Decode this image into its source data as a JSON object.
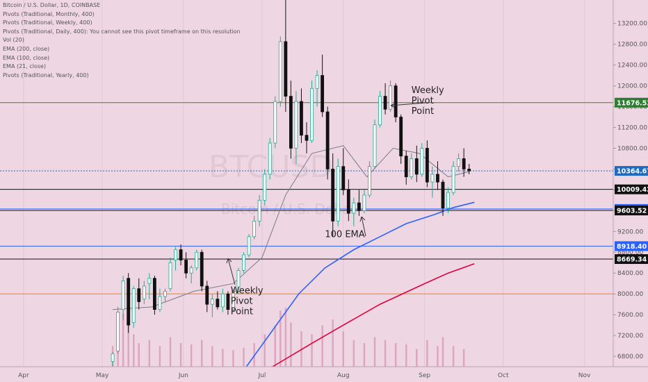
{
  "legend": [
    "Bitcoin / U.S. Dollar, 1D, COINBASE",
    "Pivots (Traditional, Monthly, 400)",
    "Pivots (Traditional, Weekly, 400)",
    "Pivots (Traditional, Daily, 400): You cannot see this pivot timeframe on this resolution",
    "Vol (20)",
    "EMA (200, close)",
    "EMA (100, close)",
    "EMA (21, close)",
    "Pivots (Traditional, Yearly, 400)"
  ],
  "watermark": {
    "symbol": "BTCUSD",
    "name": "Bitcoin / U.S. Dollar"
  },
  "annotations": [
    {
      "lines": [
        "Weekly",
        "Pivot",
        "Point"
      ],
      "x": "2020-08-27",
      "y": 11860
    },
    {
      "lines": [
        "Weekly",
        "Pivot",
        "Point"
      ],
      "x": "2020-06-19",
      "y": 8010
    },
    {
      "lines": [
        "100 EMA"
      ],
      "x": "2020-07-25",
      "y": 9090
    }
  ],
  "colors": {
    "background": "#efd6e3",
    "up": "#22ab94",
    "down": "#111111",
    "ema21": "#787b86",
    "ema100": "#2962ff",
    "ema200": "#e0003c",
    "pivot": "#c800a0"
  },
  "chart_data": {
    "type": "candlestick",
    "x_axis": {
      "start": "2020-03-23",
      "end": "2020-11-12",
      "ticks": [
        {
          "date": "2020-04-01",
          "label": "Apr"
        },
        {
          "date": "2020-05-01",
          "label": "May"
        },
        {
          "date": "2020-06-01",
          "label": "Jun"
        },
        {
          "date": "2020-07-01",
          "label": "Jul"
        },
        {
          "date": "2020-08-01",
          "label": "Aug"
        },
        {
          "date": "2020-09-01",
          "label": "Sep"
        },
        {
          "date": "2020-10-01",
          "label": "Oct"
        },
        {
          "date": "2020-11-01",
          "label": "Nov"
        }
      ]
    },
    "y_axis": {
      "range": [
        6600,
        13650
      ],
      "ticks": [
        6800,
        7200,
        7600,
        8000,
        8400,
        8800,
        9200,
        9600,
        10000,
        10400,
        10800,
        11200,
        11600,
        12000,
        12400,
        12800,
        13200,
        13600
      ]
    },
    "price_labels": [
      {
        "value": 11676.53,
        "text": "11676.53",
        "color": "#2e7d32"
      },
      {
        "value": 10364.67,
        "text": "10364.67",
        "color": "#1e6bbf"
      },
      {
        "value": 10009.42,
        "text": "10009.42",
        "color": "#111111"
      },
      {
        "value": 9632.42,
        "text": "9632.42",
        "color": "#2962ff"
      },
      {
        "value": 9603.52,
        "text": "9603.52",
        "color": "#111111"
      },
      {
        "value": 8918.4,
        "text": "8918.40",
        "color": "#2962ff"
      },
      {
        "value": 8669.34,
        "text": "8669.34",
        "color": "#111111"
      }
    ],
    "horizontal_lines": [
      {
        "value": 11676.53,
        "color": "#4b7a2a"
      },
      {
        "value": 10364.67,
        "color": "#1e6bbf",
        "dashed": true
      },
      {
        "value": 10009.42,
        "color": "#111111"
      },
      {
        "value": 9632.42,
        "color": "#2962ff"
      },
      {
        "value": 9603.52,
        "color": "#111111"
      },
      {
        "value": 8918.4,
        "color": "#2962ff"
      },
      {
        "value": 8669.34,
        "color": "#111111"
      },
      {
        "value": 8000,
        "color": "#f08020"
      }
    ],
    "candles": [
      {
        "date": "2020-05-05",
        "o": 6700,
        "h": 6880,
        "l": 6600,
        "c": 6850
      },
      {
        "date": "2020-05-07",
        "o": 6900,
        "h": 7750,
        "l": 6850,
        "c": 7650
      },
      {
        "date": "2020-05-09",
        "o": 7700,
        "h": 8350,
        "l": 7500,
        "c": 8250
      },
      {
        "date": "2020-05-11",
        "o": 8300,
        "h": 8400,
        "l": 7250,
        "c": 7400
      },
      {
        "date": "2020-05-13",
        "o": 7450,
        "h": 8150,
        "l": 7350,
        "c": 8100
      },
      {
        "date": "2020-05-15",
        "o": 8100,
        "h": 8300,
        "l": 7700,
        "c": 7850
      },
      {
        "date": "2020-05-17",
        "o": 7900,
        "h": 8250,
        "l": 7800,
        "c": 8150
      },
      {
        "date": "2020-05-19",
        "o": 8200,
        "h": 8400,
        "l": 7900,
        "c": 8300
      },
      {
        "date": "2020-05-21",
        "o": 8300,
        "h": 8350,
        "l": 7600,
        "c": 7700
      },
      {
        "date": "2020-05-23",
        "o": 7700,
        "h": 8100,
        "l": 7650,
        "c": 7950
      },
      {
        "date": "2020-05-25",
        "o": 7950,
        "h": 8100,
        "l": 7850,
        "c": 8050
      },
      {
        "date": "2020-05-27",
        "o": 8100,
        "h": 8700,
        "l": 8050,
        "c": 8600
      },
      {
        "date": "2020-05-29",
        "o": 8650,
        "h": 8900,
        "l": 8450,
        "c": 8850
      },
      {
        "date": "2020-05-31",
        "o": 8850,
        "h": 8950,
        "l": 8550,
        "c": 8650
      },
      {
        "date": "2020-06-02",
        "o": 8650,
        "h": 8800,
        "l": 8300,
        "c": 8400
      },
      {
        "date": "2020-06-04",
        "o": 8400,
        "h": 8550,
        "l": 8200,
        "c": 8500
      },
      {
        "date": "2020-06-06",
        "o": 8500,
        "h": 8850,
        "l": 8450,
        "c": 8800
      },
      {
        "date": "2020-06-08",
        "o": 8800,
        "h": 8850,
        "l": 8050,
        "c": 8150
      },
      {
        "date": "2020-06-10",
        "o": 8150,
        "h": 8250,
        "l": 7650,
        "c": 7800
      },
      {
        "date": "2020-06-12",
        "o": 7800,
        "h": 8000,
        "l": 7550,
        "c": 7900
      },
      {
        "date": "2020-06-14",
        "o": 7900,
        "h": 8050,
        "l": 7700,
        "c": 7750
      },
      {
        "date": "2020-06-16",
        "o": 7750,
        "h": 8100,
        "l": 7650,
        "c": 8000
      },
      {
        "date": "2020-06-18",
        "o": 8000,
        "h": 8050,
        "l": 7600,
        "c": 7700
      },
      {
        "date": "2020-06-20",
        "o": 7700,
        "h": 8100,
        "l": 7650,
        "c": 8050
      },
      {
        "date": "2020-06-22",
        "o": 8050,
        "h": 8500,
        "l": 8000,
        "c": 8450
      },
      {
        "date": "2020-06-24",
        "o": 8450,
        "h": 8800,
        "l": 8400,
        "c": 8750
      },
      {
        "date": "2020-06-26",
        "o": 8750,
        "h": 9150,
        "l": 8700,
        "c": 9100
      },
      {
        "date": "2020-06-28",
        "o": 9100,
        "h": 9500,
        "l": 9050,
        "c": 9400
      },
      {
        "date": "2020-06-30",
        "o": 9400,
        "h": 9900,
        "l": 9300,
        "c": 9800
      },
      {
        "date": "2020-07-02",
        "o": 9800,
        "h": 10400,
        "l": 9700,
        "c": 10300
      },
      {
        "date": "2020-07-04",
        "o": 10300,
        "h": 11000,
        "l": 10200,
        "c": 10900
      },
      {
        "date": "2020-07-06",
        "o": 10900,
        "h": 11800,
        "l": 10800,
        "c": 11700
      },
      {
        "date": "2020-07-08",
        "o": 11700,
        "h": 12950,
        "l": 11600,
        "c": 12850
      },
      {
        "date": "2020-07-10",
        "o": 12850,
        "h": 13650,
        "l": 11500,
        "c": 11800
      },
      {
        "date": "2020-07-12",
        "o": 11800,
        "h": 12100,
        "l": 10600,
        "c": 10800
      },
      {
        "date": "2020-07-14",
        "o": 10800,
        "h": 11900,
        "l": 10500,
        "c": 11700
      },
      {
        "date": "2020-07-16",
        "o": 11700,
        "h": 11950,
        "l": 10900,
        "c": 11050
      },
      {
        "date": "2020-07-18",
        "o": 11050,
        "h": 11300,
        "l": 10700,
        "c": 10950
      },
      {
        "date": "2020-07-20",
        "o": 10950,
        "h": 12100,
        "l": 10900,
        "c": 11950
      },
      {
        "date": "2020-07-22",
        "o": 11950,
        "h": 12300,
        "l": 11600,
        "c": 12200
      },
      {
        "date": "2020-07-24",
        "o": 12200,
        "h": 12600,
        "l": 11400,
        "c": 11500
      },
      {
        "date": "2020-07-26",
        "o": 11500,
        "h": 11600,
        "l": 10200,
        "c": 10400
      },
      {
        "date": "2020-07-28",
        "o": 10400,
        "h": 10700,
        "l": 9100,
        "c": 9400
      },
      {
        "date": "2020-07-30",
        "o": 9400,
        "h": 10600,
        "l": 9300,
        "c": 10450
      },
      {
        "date": "2020-08-01",
        "o": 10450,
        "h": 10800,
        "l": 9900,
        "c": 10000
      },
      {
        "date": "2020-08-03",
        "o": 10000,
        "h": 10200,
        "l": 9400,
        "c": 9550
      },
      {
        "date": "2020-08-05",
        "o": 9550,
        "h": 9850,
        "l": 9300,
        "c": 9750
      },
      {
        "date": "2020-08-07",
        "o": 9750,
        "h": 10000,
        "l": 9500,
        "c": 9600
      },
      {
        "date": "2020-08-09",
        "o": 9600,
        "h": 10000,
        "l": 9550,
        "c": 9900
      },
      {
        "date": "2020-08-11",
        "o": 9900,
        "h": 10550,
        "l": 9850,
        "c": 10450
      },
      {
        "date": "2020-08-13",
        "o": 10450,
        "h": 11350,
        "l": 10400,
        "c": 11250
      },
      {
        "date": "2020-08-15",
        "o": 11250,
        "h": 11900,
        "l": 11200,
        "c": 11800
      },
      {
        "date": "2020-08-17",
        "o": 11800,
        "h": 12050,
        "l": 11450,
        "c": 11550
      },
      {
        "date": "2020-08-19",
        "o": 11550,
        "h": 12100,
        "l": 11500,
        "c": 12000
      },
      {
        "date": "2020-08-21",
        "o": 12000,
        "h": 12050,
        "l": 11300,
        "c": 11400
      },
      {
        "date": "2020-08-23",
        "o": 11400,
        "h": 11450,
        "l": 10500,
        "c": 10650
      },
      {
        "date": "2020-08-25",
        "o": 10650,
        "h": 10750,
        "l": 10100,
        "c": 10250
      },
      {
        "date": "2020-08-27",
        "o": 10250,
        "h": 10700,
        "l": 10200,
        "c": 10600
      },
      {
        "date": "2020-08-29",
        "o": 10600,
        "h": 10850,
        "l": 10150,
        "c": 10300
      },
      {
        "date": "2020-08-31",
        "o": 10300,
        "h": 10900,
        "l": 10250,
        "c": 10800
      },
      {
        "date": "2020-09-02",
        "o": 10800,
        "h": 10950,
        "l": 10050,
        "c": 10150
      },
      {
        "date": "2020-09-04",
        "o": 10150,
        "h": 10450,
        "l": 9850,
        "c": 10300
      },
      {
        "date": "2020-09-06",
        "o": 10300,
        "h": 10550,
        "l": 10000,
        "c": 10150
      },
      {
        "date": "2020-09-08",
        "o": 10150,
        "h": 10200,
        "l": 9500,
        "c": 9650
      },
      {
        "date": "2020-09-10",
        "o": 9650,
        "h": 10050,
        "l": 9550,
        "c": 9950
      },
      {
        "date": "2020-09-12",
        "o": 9950,
        "h": 10550,
        "l": 9900,
        "c": 10450
      },
      {
        "date": "2020-09-14",
        "o": 10450,
        "h": 10700,
        "l": 10350,
        "c": 10600
      },
      {
        "date": "2020-09-16",
        "o": 10600,
        "h": 10800,
        "l": 10250,
        "c": 10400
      },
      {
        "date": "2020-09-18",
        "o": 10400,
        "h": 10500,
        "l": 10300,
        "c": 10365
      }
    ],
    "ema21": [
      {
        "date": "2020-05-05",
        "v": 7700
      },
      {
        "date": "2020-05-20",
        "v": 7750
      },
      {
        "date": "2020-06-05",
        "v": 8050
      },
      {
        "date": "2020-06-20",
        "v": 8200
      },
      {
        "date": "2020-07-01",
        "v": 8700
      },
      {
        "date": "2020-07-10",
        "v": 9900
      },
      {
        "date": "2020-07-20",
        "v": 10700
      },
      {
        "date": "2020-08-01",
        "v": 10850
      },
      {
        "date": "2020-08-10",
        "v": 10250
      },
      {
        "date": "2020-08-20",
        "v": 10800
      },
      {
        "date": "2020-08-30",
        "v": 10700
      },
      {
        "date": "2020-09-10",
        "v": 10250
      },
      {
        "date": "2020-09-18",
        "v": 10350
      }
    ],
    "ema100": [
      {
        "date": "2020-06-25",
        "v": 6600
      },
      {
        "date": "2020-07-05",
        "v": 7300
      },
      {
        "date": "2020-07-15",
        "v": 8000
      },
      {
        "date": "2020-07-25",
        "v": 8500
      },
      {
        "date": "2020-08-05",
        "v": 8850
      },
      {
        "date": "2020-08-15",
        "v": 9100
      },
      {
        "date": "2020-08-25",
        "v": 9350
      },
      {
        "date": "2020-09-05",
        "v": 9530
      },
      {
        "date": "2020-09-12",
        "v": 9660
      },
      {
        "date": "2020-09-20",
        "v": 9760
      }
    ],
    "ema200": [
      {
        "date": "2020-07-05",
        "v": 6600
      },
      {
        "date": "2020-07-20",
        "v": 7050
      },
      {
        "date": "2020-08-01",
        "v": 7400
      },
      {
        "date": "2020-08-15",
        "v": 7800
      },
      {
        "date": "2020-08-30",
        "v": 8150
      },
      {
        "date": "2020-09-10",
        "v": 8400
      },
      {
        "date": "2020-09-20",
        "v": 8580
      }
    ],
    "volume": [
      {
        "date": "2020-05-05",
        "v": 0.35
      },
      {
        "date": "2020-05-07",
        "v": 0.6
      },
      {
        "date": "2020-05-09",
        "v": 0.9
      },
      {
        "date": "2020-05-11",
        "v": 0.7
      },
      {
        "date": "2020-05-13",
        "v": 0.55
      },
      {
        "date": "2020-05-15",
        "v": 0.4
      },
      {
        "date": "2020-05-19",
        "v": 0.45
      },
      {
        "date": "2020-05-23",
        "v": 0.35
      },
      {
        "date": "2020-05-27",
        "v": 0.5
      },
      {
        "date": "2020-05-31",
        "v": 0.4
      },
      {
        "date": "2020-06-04",
        "v": 0.38
      },
      {
        "date": "2020-06-08",
        "v": 0.45
      },
      {
        "date": "2020-06-12",
        "v": 0.35
      },
      {
        "date": "2020-06-16",
        "v": 0.3
      },
      {
        "date": "2020-06-20",
        "v": 0.28
      },
      {
        "date": "2020-06-24",
        "v": 0.32
      },
      {
        "date": "2020-06-28",
        "v": 0.4
      },
      {
        "date": "2020-07-02",
        "v": 0.55
      },
      {
        "date": "2020-07-06",
        "v": 0.7
      },
      {
        "date": "2020-07-08",
        "v": 0.95
      },
      {
        "date": "2020-07-10",
        "v": 1.0
      },
      {
        "date": "2020-07-12",
        "v": 0.75
      },
      {
        "date": "2020-07-16",
        "v": 0.6
      },
      {
        "date": "2020-07-20",
        "v": 0.55
      },
      {
        "date": "2020-07-24",
        "v": 0.7
      },
      {
        "date": "2020-07-28",
        "v": 0.8
      },
      {
        "date": "2020-08-01",
        "v": 0.6
      },
      {
        "date": "2020-08-05",
        "v": 0.45
      },
      {
        "date": "2020-08-09",
        "v": 0.4
      },
      {
        "date": "2020-08-13",
        "v": 0.5
      },
      {
        "date": "2020-08-17",
        "v": 0.45
      },
      {
        "date": "2020-08-21",
        "v": 0.4
      },
      {
        "date": "2020-08-25",
        "v": 0.38
      },
      {
        "date": "2020-08-29",
        "v": 0.3
      },
      {
        "date": "2020-09-02",
        "v": 0.45
      },
      {
        "date": "2020-09-06",
        "v": 0.35
      },
      {
        "date": "2020-09-08",
        "v": 0.5
      },
      {
        "date": "2020-09-12",
        "v": 0.35
      },
      {
        "date": "2020-09-16",
        "v": 0.3
      }
    ]
  }
}
